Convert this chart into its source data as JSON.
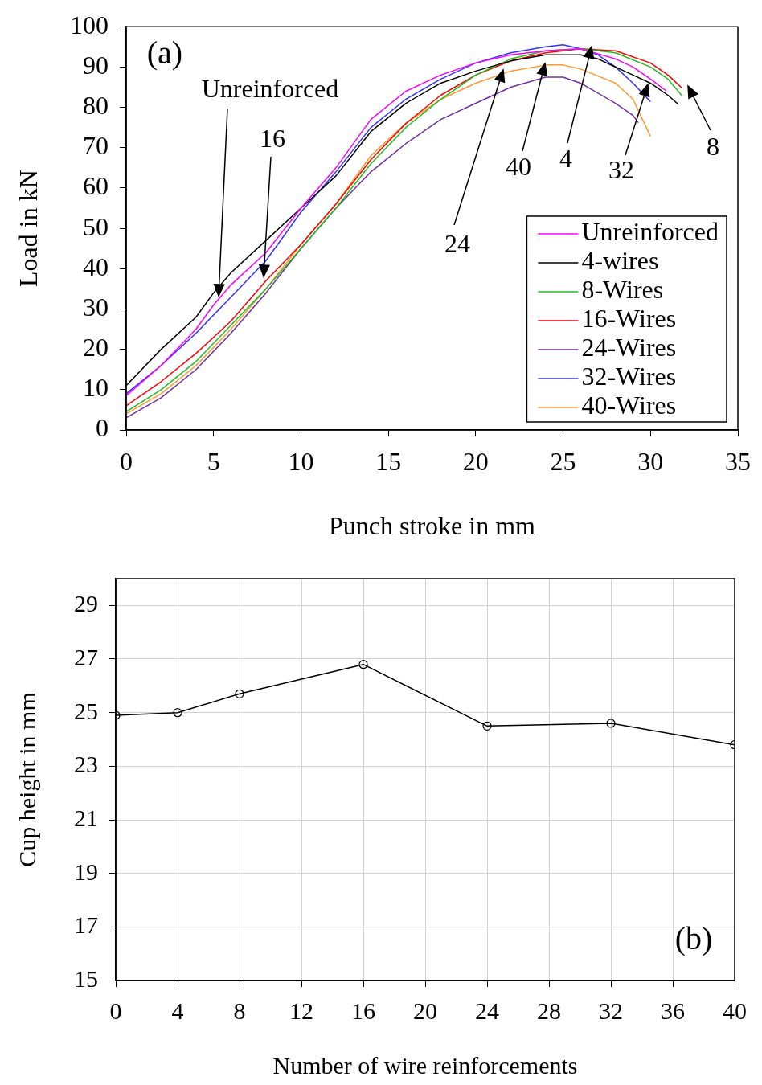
{
  "chart_data": [
    {
      "type": "line",
      "xlabel": "Punch stroke in mm",
      "ylabel": "Load in kN",
      "xlim": [
        0,
        35
      ],
      "ylim": [
        0,
        100
      ],
      "xticks": [
        0,
        5,
        10,
        15,
        20,
        25,
        30,
        35
      ],
      "yticks": [
        0,
        10,
        20,
        30,
        40,
        50,
        60,
        70,
        80,
        90,
        100
      ],
      "grid": false,
      "legend": "bottom right",
      "marker": "none",
      "line_style": "solid",
      "series": [
        {
          "name": "Unreinforced",
          "color": "#ff00ff",
          "x": [
            0,
            2,
            4,
            5,
            6,
            8,
            10,
            12,
            14,
            16,
            18,
            20,
            22,
            24,
            26,
            28,
            29,
            30,
            30.9
          ],
          "values": [
            8.5,
            16,
            25,
            31,
            36,
            44,
            55,
            65,
            77,
            84,
            88,
            91,
            93,
            94,
            94.5,
            92,
            90,
            87,
            84.1
          ]
        },
        {
          "name": "4-wires",
          "color": "#000000",
          "x": [
            0,
            2,
            4,
            5,
            6,
            8,
            10,
            12,
            14,
            16,
            18,
            20,
            22,
            24,
            26,
            27,
            28,
            29,
            30,
            31,
            31.6
          ],
          "values": [
            11,
            20,
            28,
            34,
            39,
            47,
            55,
            63,
            74,
            81,
            86,
            89,
            91.5,
            93,
            93,
            92,
            90,
            88,
            86,
            83,
            80.7
          ]
        },
        {
          "name": "8-Wires",
          "color": "#22bb22",
          "x": [
            0,
            2,
            4,
            6,
            8,
            10,
            12,
            14,
            16,
            18,
            20,
            22,
            24,
            26,
            28,
            30,
            31,
            31.8
          ],
          "values": [
            4.5,
            10,
            17,
            26,
            35,
            45,
            55,
            66,
            75,
            82,
            88,
            92,
            94,
            94.5,
            93.5,
            90,
            87,
            82.9
          ]
        },
        {
          "name": "16-Wires",
          "color": "#ff0000",
          "x": [
            0,
            2,
            4,
            6,
            8,
            10,
            12,
            14,
            16,
            18,
            20,
            22,
            24,
            26,
            28,
            30,
            31,
            31.8
          ],
          "values": [
            6,
            12,
            19,
            27,
            37,
            46,
            56,
            67,
            76,
            83,
            88,
            91.5,
            93.5,
            94.5,
            94,
            91,
            88,
            84.8
          ]
        },
        {
          "name": "24-Wires",
          "color": "#7030a0",
          "x": [
            0,
            2,
            4,
            6,
            8,
            10,
            12,
            14,
            16,
            18,
            20,
            22,
            24,
            25,
            26,
            28,
            29,
            29.3
          ],
          "values": [
            3,
            8,
            15,
            24,
            34,
            45,
            55,
            64,
            71,
            77,
            81,
            85,
            87.5,
            87.5,
            86,
            81,
            78,
            76.2
          ]
        },
        {
          "name": "32-Wires",
          "color": "#3333ff",
          "x": [
            0,
            2,
            4,
            6,
            8,
            10,
            12,
            14,
            16,
            18,
            20,
            22,
            24,
            25,
            26,
            27,
            28,
            29,
            30
          ],
          "values": [
            9,
            16,
            24,
            33,
            42,
            54,
            64,
            75,
            82,
            87,
            91,
            93.5,
            95,
            95.5,
            94.5,
            93,
            90,
            86,
            81.4
          ]
        },
        {
          "name": "40-Wires",
          "color": "#ff9933",
          "x": [
            0,
            2,
            4,
            6,
            8,
            10,
            12,
            14,
            16,
            18,
            20,
            22,
            24,
            25,
            26,
            28,
            29,
            30
          ],
          "values": [
            4,
            9,
            16,
            25,
            35,
            46,
            56,
            68,
            76,
            82,
            86,
            89,
            90.5,
            90.5,
            89.5,
            86,
            82,
            72.8
          ]
        }
      ],
      "annotations": [
        "(a)",
        "Unreinforced",
        "16",
        "24",
        "40",
        "4",
        "32",
        "8"
      ]
    },
    {
      "type": "line",
      "xlabel": "Number of wire reinforcements",
      "ylabel": "Cup height in mm",
      "xlim": [
        0,
        40
      ],
      "ylim": [
        15,
        30
      ],
      "xticks": [
        0,
        4,
        8,
        12,
        16,
        20,
        24,
        28,
        32,
        36,
        40
      ],
      "yticks": [
        15,
        17,
        19,
        21,
        23,
        25,
        27,
        29
      ],
      "grid": true,
      "legend": false,
      "marker": "circle",
      "line_style": "solid",
      "series": [
        {
          "color": "#000000",
          "x": [
            0,
            4,
            8,
            16,
            24,
            32,
            40
          ],
          "values": [
            24.9,
            25.0,
            25.7,
            26.8,
            24.5,
            24.6,
            23.8
          ]
        }
      ],
      "annotations": [
        "(b)"
      ]
    }
  ]
}
